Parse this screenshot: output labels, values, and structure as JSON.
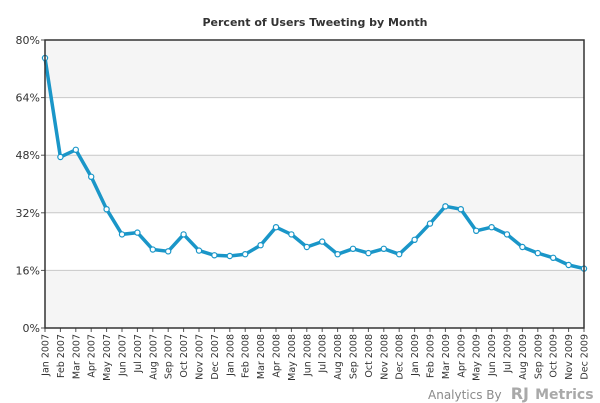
{
  "chart_data": {
    "type": "line",
    "title": "Percent of Users Tweeting by Month",
    "xlabel": "",
    "ylabel": "",
    "ylim": [
      0,
      80
    ],
    "yticks": [
      "0%",
      "16%",
      "32%",
      "48%",
      "64%",
      "80%"
    ],
    "ytick_values": [
      0,
      16,
      32,
      48,
      64,
      80
    ],
    "grid": true,
    "categories": [
      "Jan 2007",
      "Feb 2007",
      "Mar 2007",
      "Apr 2007",
      "May 2007",
      "Jun 2007",
      "Jul 2007",
      "Aug 2007",
      "Sep 2007",
      "Oct 2007",
      "Nov 2007",
      "Dec 2007",
      "Jan 2008",
      "Feb 2008",
      "Mar 2008",
      "Apr 2008",
      "May 2008",
      "Jun 2008",
      "Jul 2008",
      "Aug 2008",
      "Sep 2008",
      "Oct 2008",
      "Nov 2008",
      "Dec 2008",
      "Jan 2009",
      "Feb 2009",
      "Mar 2009",
      "Apr 2009",
      "May 2009",
      "Jun 2009",
      "Jul 2009",
      "Aug 2009",
      "Sep 2009",
      "Oct 2009",
      "Nov 2009",
      "Dec 2009"
    ],
    "series": [
      {
        "name": "Percent of Users Tweeting",
        "color": "#1a96c8",
        "values": [
          75,
          47.5,
          49.5,
          42,
          33,
          26,
          26.5,
          21.8,
          21.3,
          26,
          21.5,
          20.2,
          20,
          20.5,
          23,
          28,
          26,
          22.5,
          24,
          20.5,
          22,
          20.8,
          22,
          20.5,
          24.5,
          29,
          33.8,
          33,
          27,
          28,
          26,
          22.5,
          20.8,
          19.5,
          17.5,
          16.5
        ]
      }
    ]
  },
  "credit": {
    "prefix": "Analytics By",
    "brand_rj": "RJ",
    "brand_metrics": "Metrics"
  }
}
